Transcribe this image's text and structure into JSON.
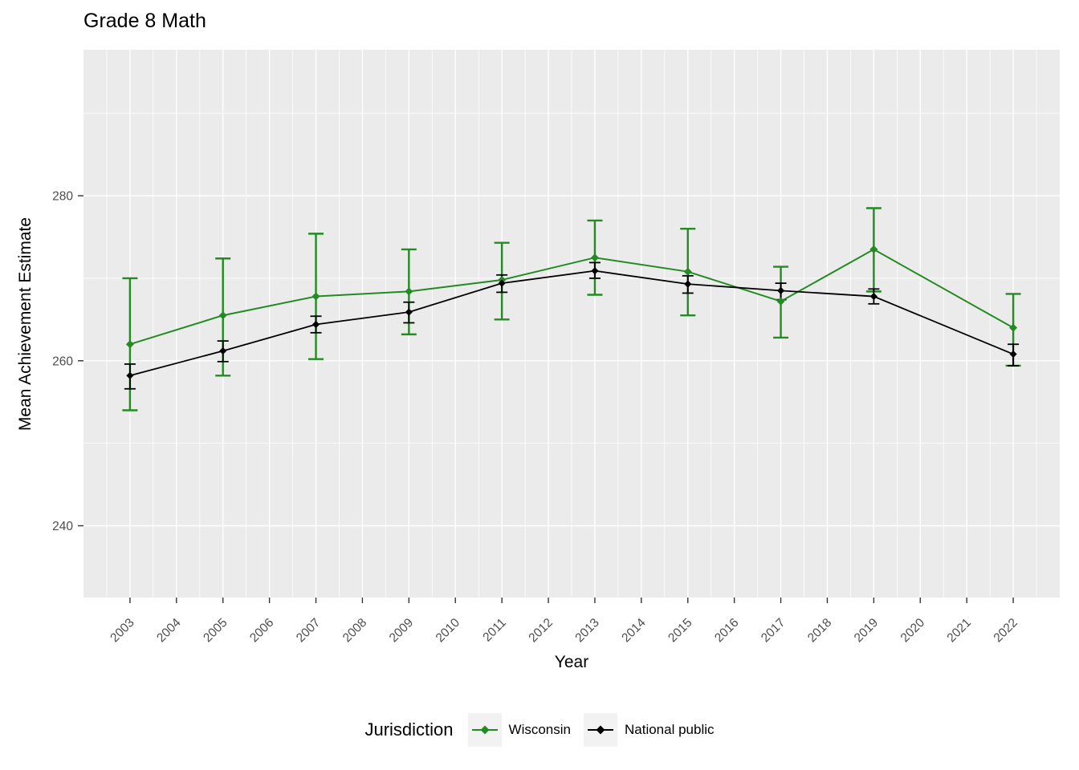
{
  "chart_data": {
    "type": "line",
    "title": "Grade 8 Math",
    "xlabel": "Year",
    "ylabel": "Mean Achievement Estimate",
    "legend_title": "Jurisdiction",
    "legend_position": "bottom",
    "grid": true,
    "panel_bg": "#EBEBEB",
    "grid_color": "#FFFFFF",
    "tick_label_color": "#4D4D4D",
    "tick_mark_color": "#333333",
    "x_domain": [
      2002,
      2023
    ],
    "y_domain": [
      231.3,
      297.7
    ],
    "x_ticks": [
      2003,
      2004,
      2005,
      2006,
      2007,
      2008,
      2009,
      2010,
      2011,
      2012,
      2013,
      2014,
      2015,
      2016,
      2017,
      2018,
      2019,
      2020,
      2021,
      2022
    ],
    "y_ticks": [
      240,
      260,
      280
    ],
    "y_minor_ticks": [
      250,
      270,
      290
    ],
    "series": [
      {
        "name": "Wisconsin",
        "color": "#228B22",
        "marker": "diamond",
        "x": [
          2003,
          2005,
          2007,
          2009,
          2011,
          2013,
          2015,
          2017,
          2019,
          2022
        ],
        "y": [
          262.0,
          265.5,
          267.8,
          268.4,
          269.8,
          272.5,
          270.8,
          267.2,
          273.5,
          264.0
        ],
        "ci_low": [
          254.0,
          258.2,
          260.2,
          263.2,
          265.0,
          268.0,
          265.5,
          262.8,
          268.4,
          259.4
        ],
        "ci_high": [
          270.0,
          272.4,
          275.4,
          273.5,
          274.3,
          277.0,
          276.0,
          271.4,
          278.5,
          268.1
        ]
      },
      {
        "name": "National public",
        "color": "#000000",
        "marker": "diamond",
        "x": [
          2003,
          2005,
          2007,
          2009,
          2011,
          2013,
          2015,
          2017,
          2019,
          2022
        ],
        "y": [
          258.2,
          261.2,
          264.4,
          265.9,
          269.4,
          270.9,
          269.3,
          268.5,
          267.8,
          260.8
        ],
        "ci_low": [
          256.6,
          259.9,
          263.4,
          264.6,
          268.3,
          270.0,
          268.2,
          267.4,
          266.9,
          259.4
        ],
        "ci_high": [
          259.6,
          262.4,
          265.4,
          267.1,
          270.4,
          271.9,
          270.3,
          269.4,
          268.7,
          262.0
        ]
      }
    ]
  }
}
